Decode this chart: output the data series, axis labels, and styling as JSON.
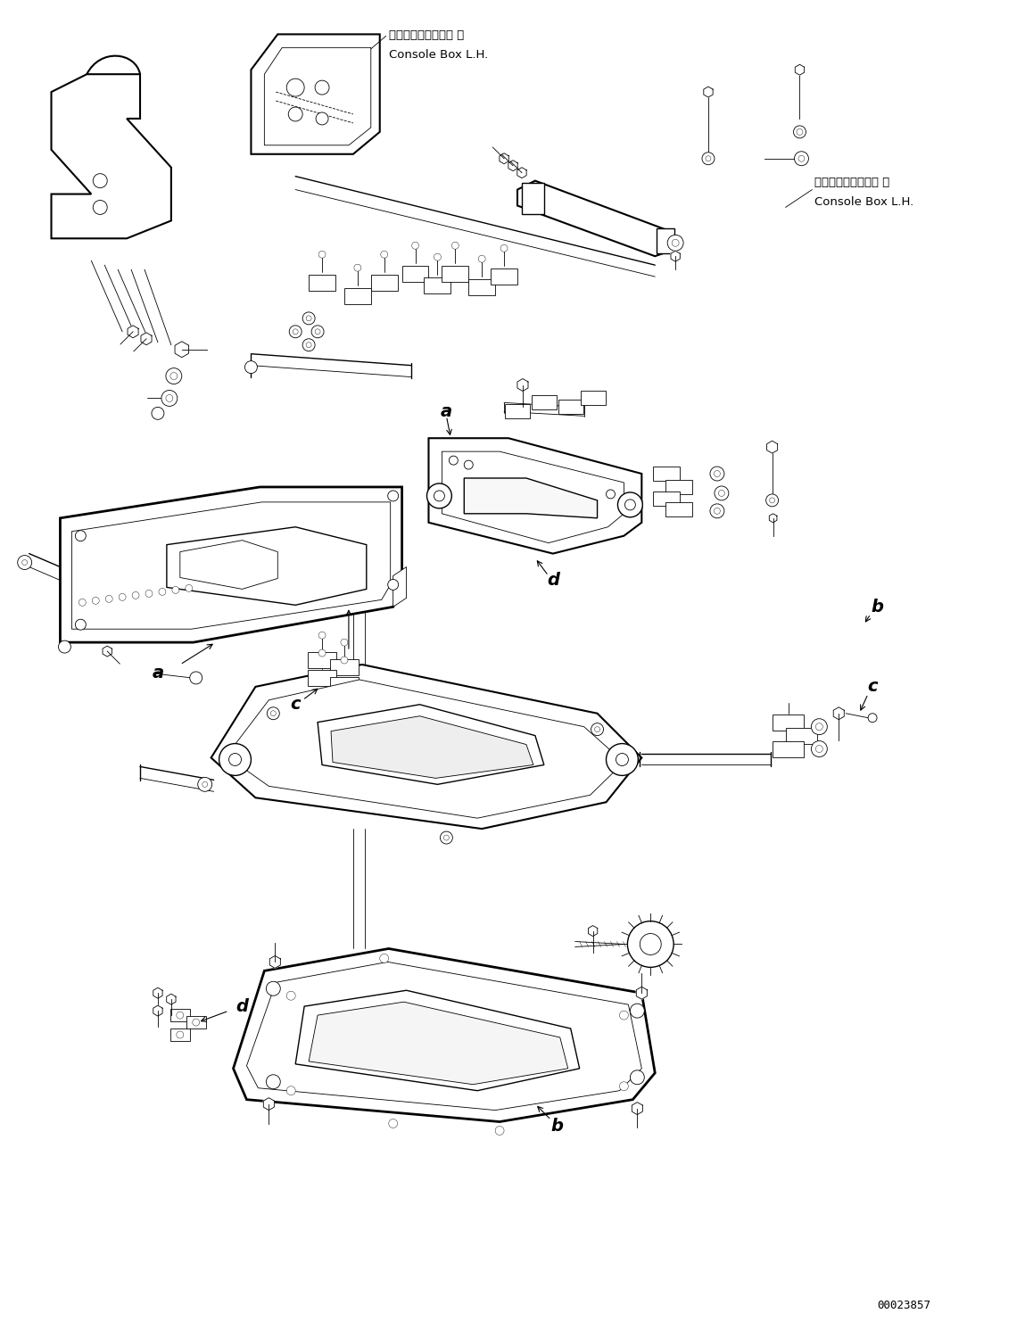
{
  "background_color": "#ffffff",
  "figure_width": 11.58,
  "figure_height": 14.91,
  "dpi": 100,
  "label_console_top_ja": "コンソールボックス 左",
  "label_console_top_en": "Console Box L.H.",
  "label_console_right_ja": "コンソールボックス 左",
  "label_console_right_en": "Console Box L.H.",
  "label_a1": "a",
  "label_a2": "a",
  "label_b1": "b",
  "label_b2": "b",
  "label_c1": "c",
  "label_c2": "c",
  "label_d1": "d",
  "label_d2": "d",
  "part_number": "00023857",
  "line_color": "#000000",
  "lw_thin": 0.6,
  "lw_med": 1.0,
  "lw_thick": 1.5,
  "lw_bold": 2.0
}
